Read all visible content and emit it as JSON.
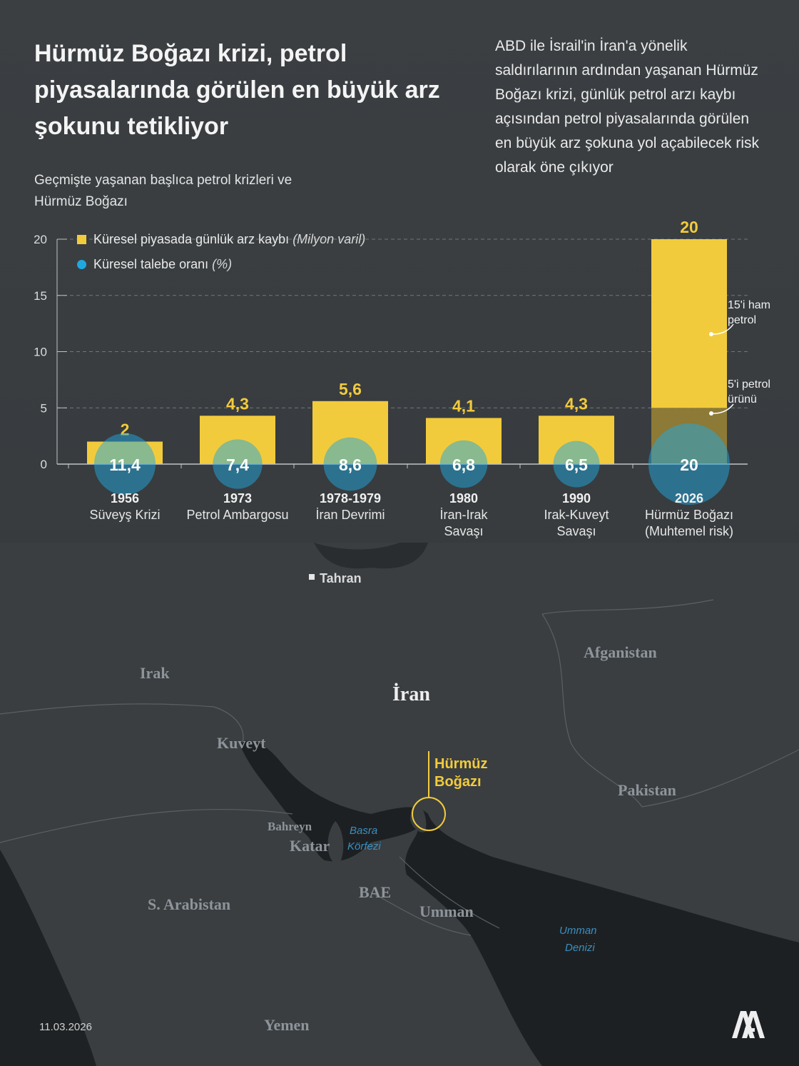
{
  "title": "Hürmüz Boğazı krizi, petrol piyasalarında görülen en büyük arz şokunu tetikliyor",
  "intro": "ABD ile İsrail'in İran'a yönelik saldırılarının ardından yaşanan Hürmüz Boğazı krizi, günlük petrol arzı kaybı açısından petrol piyasalarında görülen en büyük arz şokuna yol açabilecek risk olarak öne çıkıyor",
  "subtitle": "Geçmişte yaşanan başlıca petrol krizleri ve Hürmüz Boğazı",
  "legend": {
    "supply_label": "Küresel piyasada günlük arz kaybı",
    "supply_unit": "(Milyon varil)",
    "demand_label": "Küresel talebe oranı",
    "demand_unit": "(%)"
  },
  "colors": {
    "bar": "#f2cb3c",
    "bar_product": "#8c7a36",
    "circle": "#1fa8e0",
    "background": "#383c3f"
  },
  "chart_data": {
    "type": "bar",
    "ylim": [
      0,
      20
    ],
    "yticks": [
      0,
      5,
      10,
      15,
      20
    ],
    "grid": true,
    "legend_position": "top-left",
    "categories": [
      {
        "year": "1956",
        "name": "Süveyş Krizi",
        "value": 2,
        "value_label": "2",
        "share": 11.4,
        "share_label": "11,4"
      },
      {
        "year": "1973",
        "name": "Petrol Ambargosu",
        "value": 4.3,
        "value_label": "4,3",
        "share": 7.4,
        "share_label": "7,4"
      },
      {
        "year": "1978-1979",
        "name": "İran Devrimi",
        "value": 5.6,
        "value_label": "5,6",
        "share": 8.6,
        "share_label": "8,6"
      },
      {
        "year": "1980",
        "name": "İran-Irak Savaşı",
        "value": 4.1,
        "value_label": "4,1",
        "share": 6.8,
        "share_label": "6,8"
      },
      {
        "year": "1990",
        "name": "Irak-Kuveyt Savaşı",
        "value": 4.3,
        "value_label": "4,3",
        "share": 6.5,
        "share_label": "6,5"
      },
      {
        "year": "2026",
        "name": "Hürmüz Boğazı (Muhtemel risk)",
        "value": 20,
        "value_label": "20",
        "share": 20,
        "share_label": "20",
        "breakdown": [
          {
            "label": "5'i petrol ürünü",
            "value": 5
          },
          {
            "label": "15'i ham petrol",
            "value": 15
          }
        ]
      }
    ]
  },
  "map": {
    "labels": {
      "tahran": "Tahran",
      "irak": "Irak",
      "iran": "İran",
      "afganistan": "Afganistan",
      "kuveyt": "Kuveyt",
      "pakistan": "Pakistan",
      "bahreyn": "Bahreyn",
      "katar": "Katar",
      "basra1": "Basra",
      "basra2": "Körfezi",
      "bae": "BAE",
      "arabistan": "S. Arabistan",
      "umman": "Umman",
      "umman_denizi1": "Umman",
      "umman_denizi2": "Denizi",
      "yemen": "Yemen",
      "hurmuz1": "Hürmüz",
      "hurmuz2": "Boğazı"
    }
  },
  "date": "11.03.2026"
}
